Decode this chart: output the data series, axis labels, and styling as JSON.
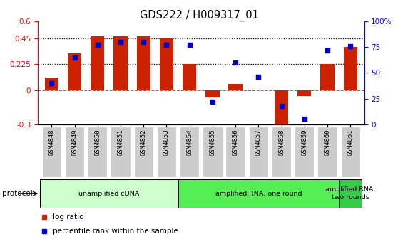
{
  "title": "GDS222 / H009317_01",
  "samples": [
    "GSM4848",
    "GSM4849",
    "GSM4850",
    "GSM4851",
    "GSM4852",
    "GSM4853",
    "GSM4854",
    "GSM4855",
    "GSM4856",
    "GSM4857",
    "GSM4858",
    "GSM4859",
    "GSM4860",
    "GSM4861"
  ],
  "log_ratio": [
    0.11,
    0.32,
    0.47,
    0.47,
    0.47,
    0.455,
    0.225,
    -0.065,
    0.055,
    0.0,
    -0.35,
    -0.055,
    0.225,
    0.38
  ],
  "percentile_rank": [
    40,
    65,
    77,
    80,
    80,
    77,
    77,
    22,
    60,
    46,
    18,
    5,
    72,
    76
  ],
  "bar_color": "#cc2200",
  "dot_color": "#0000cc",
  "ylim_left": [
    -0.3,
    0.6
  ],
  "ylim_right": [
    0,
    100
  ],
  "yticks_left": [
    -0.3,
    0.0,
    0.225,
    0.45,
    0.6
  ],
  "yticks_right": [
    0,
    25,
    50,
    75,
    100
  ],
  "hlines": [
    0.225,
    0.45
  ],
  "zero_line": 0.0,
  "protocols": [
    {
      "label": "unamplified cDNA",
      "start": 0,
      "end": 6,
      "color": "#ccffcc"
    },
    {
      "label": "amplified RNA, one round",
      "start": 6,
      "end": 13,
      "color": "#55ee55"
    },
    {
      "label": "amplified RNA,\ntwo rounds",
      "start": 13,
      "end": 14,
      "color": "#33cc44"
    }
  ],
  "legend_items": [
    {
      "label": "log ratio",
      "color": "#cc2200"
    },
    {
      "label": "percentile rank within the sample",
      "color": "#0000cc"
    }
  ],
  "protocol_label": "protocol",
  "tick_label_bg": "#cccccc"
}
